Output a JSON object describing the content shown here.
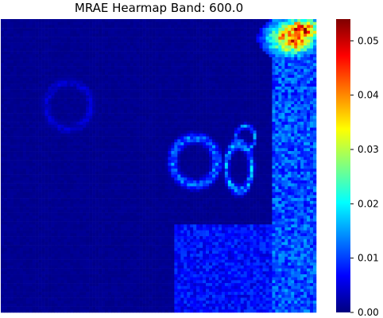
{
  "chart_data": {
    "type": "heatmap",
    "title": "MRAE Hearmap Band: 600.0",
    "xlabel": "",
    "ylabel": "",
    "colormap": "jet",
    "colorbar": {
      "vmin": 0.0,
      "vmax": 0.054,
      "ticks": [
        0.0,
        0.01,
        0.02,
        0.03,
        0.04,
        0.05
      ],
      "tick_labels": [
        "0.00",
        "0.01",
        "0.02",
        "0.03",
        "0.04",
        "0.05"
      ]
    },
    "grid": false,
    "axis_ticks_visible": false,
    "grid_cells": [
      100,
      100
    ],
    "background_level": 0.001,
    "regions": [
      {
        "name": "right-edge-strip",
        "x_range": [
          86,
          100
        ],
        "y_range": [
          0,
          100
        ],
        "level": 0.012
      },
      {
        "name": "top-right-hotspot",
        "center": [
          92,
          6
        ],
        "radius": [
          8,
          6
        ],
        "level": 0.045
      },
      {
        "name": "upper-right-corner",
        "center": [
          95,
          3
        ],
        "radius": [
          6,
          4
        ],
        "level": 0.05
      },
      {
        "name": "bottom-right-region",
        "x_range": [
          55,
          100
        ],
        "y_range": [
          70,
          100
        ],
        "level": 0.008
      },
      {
        "name": "left-ring",
        "center": [
          61,
          48
        ],
        "radius": [
          7,
          8
        ],
        "level": 0.012,
        "ring": true
      },
      {
        "name": "middle-ring",
        "center": [
          75,
          50
        ],
        "radius": [
          4,
          8
        ],
        "level": 0.014,
        "ring": true
      },
      {
        "name": "small-ring",
        "center": [
          77,
          40
        ],
        "radius": [
          3,
          4
        ],
        "level": 0.012,
        "ring": true
      },
      {
        "name": "faint-left-ring",
        "center": [
          21,
          29
        ],
        "radius": [
          7,
          8
        ],
        "level": 0.004,
        "ring": true
      }
    ]
  }
}
